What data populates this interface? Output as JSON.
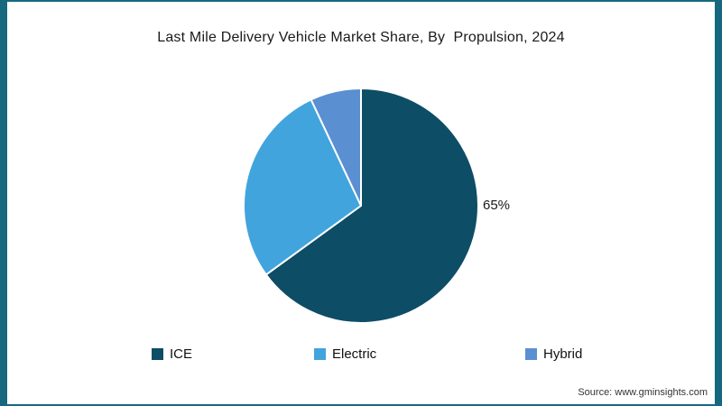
{
  "title": "Last Mile Delivery Vehicle Market Share, By  Propulsion, 2024",
  "source_note": "Source: www.gminsights.com",
  "colors": {
    "frame": "#16687f",
    "background": "#ffffff",
    "slice_ice": "#0d4d66",
    "slice_electric": "#41a4dd",
    "slice_hybrid": "#5a8fd1"
  },
  "pct_label": "65%",
  "chart_data": {
    "type": "pie",
    "title": "Last Mile Delivery Vehicle Market Share, By  Propulsion, 2024",
    "labels": [
      "ICE",
      "Electric",
      "Hybrid"
    ],
    "values": [
      65,
      28,
      7
    ],
    "colors": [
      "#0d4d66",
      "#41a4dd",
      "#5a8fd1"
    ],
    "data_labels": [
      "65%",
      "",
      ""
    ],
    "start_angle_deg": -90,
    "direction": "clockwise",
    "legend_position": "bottom",
    "units": "percent"
  },
  "legend": {
    "items": [
      {
        "label": "ICE",
        "color": "#0d4d66"
      },
      {
        "label": "Electric",
        "color": "#41a4dd"
      },
      {
        "label": "Hybrid",
        "color": "#5a8fd1"
      }
    ]
  }
}
